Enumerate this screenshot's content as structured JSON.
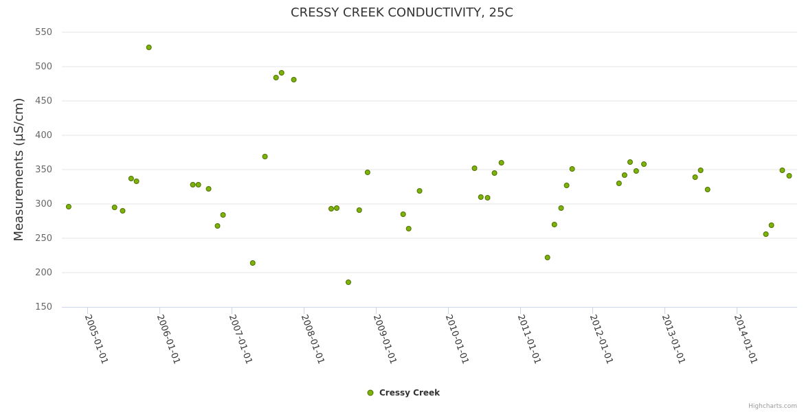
{
  "chart_data": {
    "type": "scatter",
    "title": "CRESSY CREEK CONDUCTIVITY, 25C",
    "xlabel": "",
    "ylabel": "Measurements (µS/cm)",
    "ylim": [
      150,
      550
    ],
    "yticks": [
      150,
      200,
      250,
      300,
      350,
      400,
      450,
      500,
      550
    ],
    "xticks": [
      "2005-01-01",
      "2006-01-01",
      "2007-01-01",
      "2008-01-01",
      "2009-01-01",
      "2010-01-01",
      "2011-01-01",
      "2012-01-01",
      "2013-01-01",
      "2014-01-01"
    ],
    "grid": true,
    "legend_position": "bottom-center",
    "series": [
      {
        "name": "Cressy Creek",
        "color": "#7cb20a",
        "edge_color": "#4d7000",
        "points": [
          [
            "2004-09-27",
            296
          ],
          [
            "2005-05-18",
            295
          ],
          [
            "2005-06-28",
            290
          ],
          [
            "2005-08-10",
            337
          ],
          [
            "2005-09-06",
            333
          ],
          [
            "2005-11-08",
            528
          ],
          [
            "2006-06-18",
            328
          ],
          [
            "2006-07-16",
            328
          ],
          [
            "2006-09-06",
            322
          ],
          [
            "2006-10-21",
            268
          ],
          [
            "2006-11-18",
            284
          ],
          [
            "2007-04-17",
            214
          ],
          [
            "2007-06-18",
            369
          ],
          [
            "2007-08-13",
            484
          ],
          [
            "2007-09-10",
            491
          ],
          [
            "2007-11-11",
            481
          ],
          [
            "2008-05-18",
            293
          ],
          [
            "2008-06-15",
            294
          ],
          [
            "2008-08-13",
            186
          ],
          [
            "2008-10-07",
            291
          ],
          [
            "2008-11-18",
            346
          ],
          [
            "2009-05-18",
            285
          ],
          [
            "2009-06-15",
            264
          ],
          [
            "2009-08-09",
            319
          ],
          [
            "2010-05-14",
            352
          ],
          [
            "2010-06-15",
            310
          ],
          [
            "2010-07-19",
            309
          ],
          [
            "2010-08-23",
            345
          ],
          [
            "2010-09-27",
            360
          ],
          [
            "2011-05-18",
            222
          ],
          [
            "2011-06-22",
            270
          ],
          [
            "2011-07-26",
            294
          ],
          [
            "2011-08-23",
            327
          ],
          [
            "2011-09-20",
            351
          ],
          [
            "2012-05-14",
            330
          ],
          [
            "2012-06-11",
            342
          ],
          [
            "2012-07-09",
            361
          ],
          [
            "2012-08-09",
            348
          ],
          [
            "2012-09-17",
            358
          ],
          [
            "2013-06-04",
            339
          ],
          [
            "2013-07-02",
            349
          ],
          [
            "2013-08-06",
            321
          ],
          [
            "2014-05-28",
            256
          ],
          [
            "2014-06-25",
            269
          ],
          [
            "2014-08-19",
            349
          ],
          [
            "2014-09-23",
            341
          ]
        ]
      }
    ]
  },
  "credits": "Highcharts.com"
}
